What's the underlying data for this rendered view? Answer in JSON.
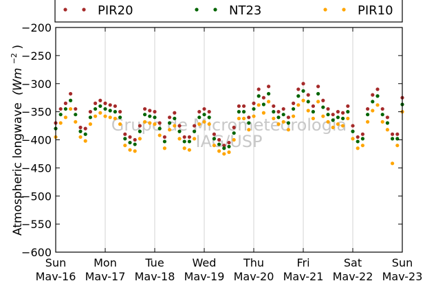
{
  "chart_data": {
    "type": "scatter",
    "ylabel": "Atmospheric longwave",
    "ylabel_units": "(Wm",
    "ylabel_units_exp": "−2",
    "ylabel_units_close": ")",
    "ylim": [
      -600,
      -200
    ],
    "yticks": [
      -200,
      -250,
      -300,
      -350,
      -400,
      -450,
      -500,
      -550,
      -600
    ],
    "ytick_labels": [
      "−200",
      "−250",
      "−300",
      "−350",
      "−400",
      "−450",
      "−500",
      "−550",
      "−600"
    ],
    "xlim": [
      0,
      7
    ],
    "xticks": [
      {
        "day": 0,
        "line1": "Sun",
        "line2": "Mav-16"
      },
      {
        "day": 1,
        "line1": "Mon",
        "line2": "Mav-17"
      },
      {
        "day": 2,
        "line1": "Tue",
        "line2": "Mav-18"
      },
      {
        "day": 3,
        "line1": "Wed",
        "line2": "Mav-19"
      },
      {
        "day": 4,
        "line1": "Thu",
        "line2": "Mav-20"
      },
      {
        "day": 5,
        "line1": "Fri",
        "line2": "Mav-21"
      },
      {
        "day": 6,
        "line1": "Sat",
        "line2": "Mav-22"
      },
      {
        "day": 7,
        "line1": "Sun",
        "line2": "Mav-23"
      }
    ],
    "grid": "vertical",
    "legend_position": "top",
    "watermark_line1": "Grupo de Micrometeorologia",
    "watermark_line2": "IAG/USP",
    "series": [
      {
        "name": "PIR20",
        "color": "#a52a2a",
        "x": [
          0.0,
          0.1,
          0.2,
          0.3,
          0.4,
          0.5,
          0.6,
          0.7,
          0.8,
          0.9,
          1.0,
          1.1,
          1.2,
          1.3,
          1.4,
          1.5,
          1.6,
          1.7,
          1.8,
          1.9,
          2.0,
          2.1,
          2.2,
          2.3,
          2.4,
          2.5,
          2.6,
          2.7,
          2.8,
          2.9,
          3.0,
          3.1,
          3.2,
          3.3,
          3.4,
          3.5,
          3.6,
          3.7,
          3.8,
          3.9,
          4.0,
          4.1,
          4.2,
          4.3,
          4.4,
          4.5,
          4.6,
          4.7,
          4.8,
          4.9,
          5.0,
          5.1,
          5.2,
          5.3,
          5.4,
          5.5,
          5.6,
          5.7,
          5.8,
          5.9,
          6.0,
          6.1,
          6.2,
          6.3,
          6.4,
          6.5,
          6.6,
          6.7,
          6.8,
          6.9,
          7.0
        ],
        "y": [
          -370,
          -345,
          -335,
          -318,
          -345,
          -378,
          -380,
          -350,
          -335,
          -330,
          -335,
          -338,
          -340,
          -350,
          -390,
          -395,
          -400,
          -375,
          -345,
          -348,
          -350,
          -370,
          -395,
          -360,
          -352,
          -375,
          -395,
          -395,
          -375,
          -350,
          -345,
          -350,
          -390,
          -400,
          -410,
          -405,
          -378,
          -340,
          -340,
          -360,
          -335,
          -310,
          -325,
          -305,
          -340,
          -350,
          -345,
          -360,
          -335,
          -310,
          -300,
          -320,
          -340,
          -305,
          -330,
          -345,
          -355,
          -350,
          -352,
          -340,
          -375,
          -395,
          -390,
          -345,
          -320,
          -310,
          -345,
          -360,
          -390,
          -390,
          -325
        ]
      },
      {
        "name": "NT23",
        "color": "#006400",
        "x": [
          0.0,
          0.1,
          0.2,
          0.3,
          0.4,
          0.5,
          0.6,
          0.7,
          0.8,
          0.9,
          1.0,
          1.1,
          1.2,
          1.3,
          1.4,
          1.5,
          1.6,
          1.7,
          1.8,
          1.9,
          2.0,
          2.1,
          2.2,
          2.3,
          2.4,
          2.5,
          2.6,
          2.7,
          2.8,
          2.9,
          3.0,
          3.1,
          3.2,
          3.3,
          3.4,
          3.5,
          3.6,
          3.7,
          3.8,
          3.9,
          4.0,
          4.1,
          4.2,
          4.3,
          4.4,
          4.5,
          4.6,
          4.7,
          4.8,
          4.9,
          5.0,
          5.1,
          5.2,
          5.3,
          5.4,
          5.5,
          5.6,
          5.7,
          5.8,
          5.9,
          6.0,
          6.1,
          6.2,
          6.3,
          6.4,
          6.5,
          6.6,
          6.7,
          6.8,
          6.9,
          7.0
        ],
        "y": [
          -380,
          -355,
          -345,
          -330,
          -355,
          -385,
          -390,
          -360,
          -345,
          -340,
          -345,
          -348,
          -350,
          -360,
          -398,
          -405,
          -408,
          -385,
          -355,
          -358,
          -360,
          -380,
          -403,
          -370,
          -362,
          -385,
          -403,
          -403,
          -385,
          -360,
          -355,
          -360,
          -398,
          -408,
          -415,
          -412,
          -388,
          -350,
          -350,
          -370,
          -345,
          -322,
          -337,
          -318,
          -350,
          -360,
          -355,
          -370,
          -345,
          -322,
          -313,
          -332,
          -350,
          -318,
          -342,
          -355,
          -365,
          -360,
          -362,
          -350,
          -385,
          -403,
          -398,
          -355,
          -332,
          -322,
          -355,
          -370,
          -398,
          -398,
          -337
        ]
      },
      {
        "name": "PIR10",
        "color": "#ffa500",
        "x": [
          0.0,
          0.1,
          0.2,
          0.3,
          0.4,
          0.5,
          0.6,
          0.7,
          0.8,
          0.9,
          1.0,
          1.1,
          1.2,
          1.3,
          1.4,
          1.5,
          1.6,
          1.7,
          1.8,
          1.9,
          2.0,
          2.1,
          2.2,
          2.3,
          2.4,
          2.5,
          2.6,
          2.7,
          2.8,
          2.9,
          3.0,
          3.1,
          3.2,
          3.3,
          3.4,
          3.5,
          3.6,
          3.7,
          3.8,
          3.9,
          4.0,
          4.1,
          4.2,
          4.3,
          4.4,
          4.5,
          4.6,
          4.7,
          4.8,
          4.9,
          5.0,
          5.1,
          5.2,
          5.3,
          5.4,
          5.5,
          5.6,
          5.7,
          5.8,
          5.9,
          6.0,
          6.1,
          6.2,
          6.3,
          6.4,
          6.5,
          6.6,
          6.7,
          6.8,
          6.9,
          7.0
        ],
        "y": [
          -395,
          -370,
          -360,
          -345,
          -368,
          -395,
          -402,
          -372,
          -358,
          -352,
          -358,
          -360,
          -362,
          -372,
          -410,
          -418,
          -420,
          -398,
          -368,
          -370,
          -372,
          -392,
          -415,
          -382,
          -375,
          -398,
          -415,
          -418,
          -398,
          -372,
          -368,
          -372,
          -410,
          -420,
          -425,
          -422,
          -400,
          -362,
          -362,
          -382,
          -358,
          -338,
          -352,
          -332,
          -362,
          -372,
          -368,
          -382,
          -358,
          -338,
          -330,
          -348,
          -362,
          -332,
          -358,
          -368,
          -378,
          -372,
          -375,
          -362,
          -398,
          -415,
          -410,
          -368,
          -348,
          -338,
          -368,
          -382,
          -442,
          -410,
          -350
        ]
      }
    ]
  }
}
